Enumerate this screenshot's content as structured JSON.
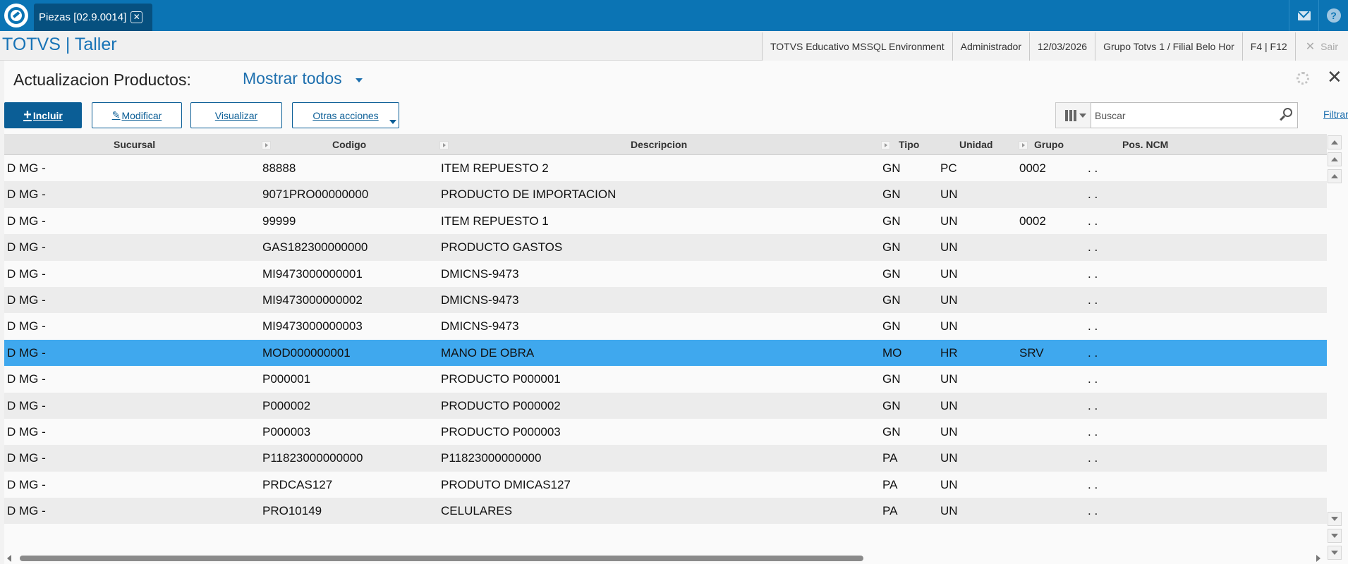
{
  "topbar": {
    "tab_label": "Piezas [02.9.0014]",
    "tab_close": "✕"
  },
  "app": {
    "title": "TOTVS | Taller"
  },
  "infobar": {
    "environment": "TOTVS Educativo MSSQL Environment",
    "user": "Administrador",
    "date": "12/03/2026",
    "company": "Grupo Totvs 1 / Filial Belo Hor",
    "keys": "F4 | F12",
    "sair": "Sair"
  },
  "page": {
    "heading": "Actualizacion Productos:",
    "filter_selected": "Mostrar todos",
    "close": "✕"
  },
  "toolbar": {
    "incluir": "Incluir",
    "modificar": "Modificar",
    "visualizar": "Visualizar",
    "otras_acciones": "Otras acciones",
    "search_placeholder": "Buscar",
    "filtrar": "Filtrar"
  },
  "grid": {
    "columns": [
      "Sucursal",
      "Codigo",
      "Descripcion",
      "Tipo",
      "Unidad",
      "Grupo",
      "Pos. NCM"
    ],
    "rows": [
      [
        "D MG -",
        "88888",
        "ITEM REPUESTO 2",
        "GN",
        "PC",
        "0002",
        ". ."
      ],
      [
        "D MG -",
        "9071PRO00000000",
        "PRODUCTO DE IMPORTACION",
        "GN",
        "UN",
        "",
        ". ."
      ],
      [
        "D MG -",
        "99999",
        "ITEM REPUESTO 1",
        "GN",
        "UN",
        "0002",
        ". ."
      ],
      [
        "D MG -",
        "GAS182300000000",
        "PRODUCTO GASTOS",
        "GN",
        "UN",
        "",
        ". ."
      ],
      [
        "D MG -",
        "MI9473000000001",
        "DMICNS-9473",
        "GN",
        "UN",
        "",
        ". ."
      ],
      [
        "D MG -",
        "MI9473000000002",
        "DMICNS-9473",
        "GN",
        "UN",
        "",
        ". ."
      ],
      [
        "D MG -",
        "MI9473000000003",
        "DMICNS-9473",
        "GN",
        "UN",
        "",
        ". ."
      ],
      [
        "D MG -",
        "MOD000000001",
        "MANO DE OBRA",
        "MO",
        "HR",
        "SRV",
        ". ."
      ],
      [
        "D MG -",
        "P000001",
        "PRODUCTO P000001",
        "GN",
        "UN",
        "",
        ". ."
      ],
      [
        "D MG -",
        "P000002",
        "PRODUCTO P000002",
        "GN",
        "UN",
        "",
        ". ."
      ],
      [
        "D MG -",
        "P000003",
        "PRODUCTO P000003",
        "GN",
        "UN",
        "",
        ". ."
      ],
      [
        "D MG -",
        "P11823000000000",
        "P11823000000000",
        "PA",
        "UN",
        "",
        ". ."
      ],
      [
        "D MG -",
        "PRDCAS127",
        "PRODUTO DMICAS127",
        "PA",
        "UN",
        "",
        ". ."
      ],
      [
        "D MG -",
        "PRO10149",
        "CELULARES",
        "PA",
        "UN",
        "",
        ". ."
      ]
    ],
    "selected_row": 7
  },
  "icons": {
    "logo": "totvs-logo",
    "mail": "mail-icon",
    "help": "help-icon",
    "settings": "gear-icon",
    "search": "search-icon",
    "columns": "columns-icon"
  }
}
